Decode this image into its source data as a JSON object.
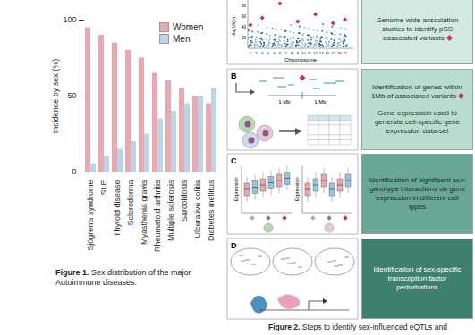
{
  "chart_data": {
    "type": "bar",
    "y_label": "Incidence by sex (%)",
    "categories": [
      "Sjögren's syndrome",
      "SLE",
      "Thyroid disease",
      "Scleroderma",
      "Myasthenia gravis",
      "Rheumatoid arthritis",
      "Multiple sclerosis",
      "Sarcoidosis",
      "Ulcerative colitis",
      "Diabetes mellitus"
    ],
    "series": [
      {
        "name": "Women",
        "color": "#e8a9b1",
        "values": [
          95,
          90,
          85,
          80,
          75,
          65,
          60,
          55,
          50,
          45
        ]
      },
      {
        "name": "Men",
        "color": "#bcd5e6",
        "values": [
          5,
          10,
          15,
          20,
          25,
          35,
          40,
          45,
          50,
          55
        ]
      }
    ],
    "ylim": [
      0,
      100
    ],
    "yticks": [
      0,
      50,
      100
    ],
    "legend": "top-right",
    "grid": false
  },
  "figure1_caption": {
    "label": "Figure 1.",
    "text": "Sex distribution of the major Autoimmune diseases."
  },
  "figure2": {
    "panels": [
      {
        "y_label": "-log10(p)",
        "y_ticks": [
          20,
          40,
          60,
          80
        ],
        "x_label": "Chromosome",
        "x_ticks": [
          1,
          2,
          3,
          4,
          5,
          6,
          7,
          8,
          9,
          10,
          11,
          12,
          13,
          15,
          17,
          19,
          22
        ],
        "texts": [
          "Genome-wide association studies to identify pSS associated variants"
        ]
      },
      {
        "letter": "B",
        "distance_labels": [
          "1 Mb",
          "1 Mb"
        ],
        "texts": [
          "Identification of genes within 1Mb of associated variants",
          "Gene expression used to generate cell-specific gene expression data-set"
        ]
      },
      {
        "letter": "C",
        "y_labels": [
          "Expression",
          "Expression"
        ],
        "texts": [
          "Identification of significant sex-genotype interactions on gene expression in different cell types"
        ]
      },
      {
        "letter": "D",
        "texts": [
          "Identification of sex-specific transcription factor perturbations"
        ]
      }
    ],
    "caption": {
      "label": "Figure 2.",
      "text": "Steps to identify sex-influenced eQTLs and"
    }
  }
}
